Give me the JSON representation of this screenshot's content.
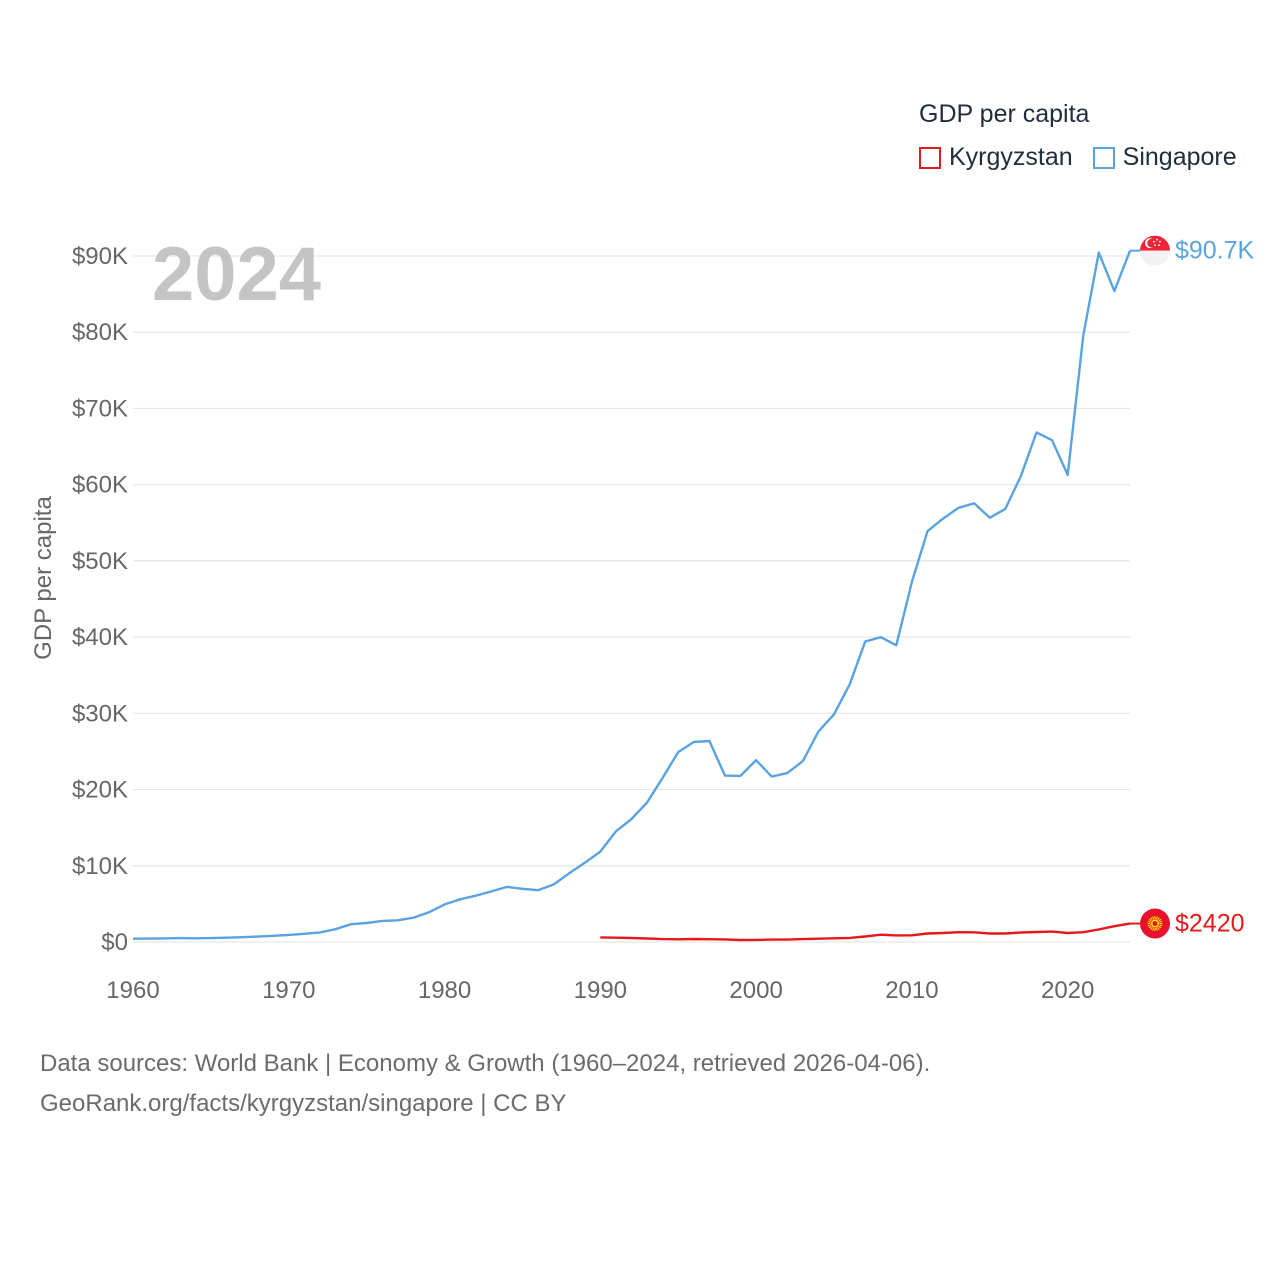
{
  "legend": {
    "title": "GDP per capita",
    "items": [
      {
        "label": "Kyrgyzstan",
        "color": "#e31a1c"
      },
      {
        "label": "Singapore",
        "color": "#5ba3e0"
      }
    ]
  },
  "source": {
    "line1": "Data sources: World Bank | Economy & Growth (1960–2024, retrieved 2026-04-06).",
    "line2": "GeoRank.org/facts/kyrgyzstan/singapore | CC BY"
  },
  "chart_data": {
    "type": "line",
    "year_label": "2024",
    "ylabel": "GDP per capita",
    "xlim": [
      1960,
      2024
    ],
    "ylim": [
      0,
      90000
    ],
    "yticks": [
      0,
      10000,
      20000,
      30000,
      40000,
      50000,
      60000,
      70000,
      80000,
      90000
    ],
    "ytick_labels": [
      "$0",
      "$10K",
      "$20K",
      "$30K",
      "$40K",
      "$50K",
      "$60K",
      "$70K",
      "$80K",
      "$90K"
    ],
    "xticks": [
      1960,
      1970,
      1980,
      1990,
      2000,
      2010,
      2020
    ],
    "xtick_labels": [
      "1960",
      "1970",
      "1980",
      "1990",
      "2000",
      "2010",
      "2020"
    ],
    "series": [
      {
        "name": "Singapore",
        "color": "#5ba3e0",
        "end_label": "$90.7K",
        "flag": "singapore-flag",
        "x": [
          1960,
          1961,
          1962,
          1963,
          1964,
          1965,
          1966,
          1967,
          1968,
          1969,
          1970,
          1971,
          1972,
          1973,
          1974,
          1975,
          1976,
          1977,
          1978,
          1979,
          1980,
          1981,
          1982,
          1983,
          1984,
          1985,
          1986,
          1987,
          1988,
          1989,
          1990,
          1991,
          1992,
          1993,
          1994,
          1995,
          1996,
          1997,
          1998,
          1999,
          2000,
          2001,
          2002,
          2003,
          2004,
          2005,
          2006,
          2007,
          2008,
          2009,
          2010,
          2011,
          2012,
          2013,
          2014,
          2015,
          2016,
          2017,
          2018,
          2019,
          2020,
          2021,
          2022,
          2023,
          2024
        ],
        "values": [
          428,
          449,
          472,
          511,
          485,
          517,
          567,
          626,
          708,
          812,
          925,
          1071,
          1264,
          1685,
          2341,
          2490,
          2769,
          2846,
          3194,
          3900,
          4928,
          5596,
          6078,
          6633,
          7235,
          6986,
          6800,
          7539,
          9018,
          10394,
          11864,
          14505,
          16136,
          18302,
          21553,
          24915,
          26233,
          26375,
          21829,
          21796,
          23852,
          21700,
          22160,
          23730,
          27610,
          29870,
          33770,
          39430,
          39990,
          38930,
          47240,
          53890,
          55550,
          56970,
          57560,
          55650,
          56830,
          61180,
          66840,
          65830,
          61270,
          79600,
          90440,
          85400,
          90700
        ]
      },
      {
        "name": "Kyrgyzstan",
        "color": "#e31a1c",
        "end_label": "$2420",
        "flag": "kyrgyzstan-flag",
        "x": [
          1990,
          1991,
          1992,
          1993,
          1994,
          1995,
          1996,
          1997,
          1998,
          1999,
          2000,
          2001,
          2002,
          2003,
          2004,
          2005,
          2006,
          2007,
          2008,
          2009,
          2010,
          2011,
          2012,
          2013,
          2014,
          2015,
          2016,
          2017,
          2018,
          2019,
          2020,
          2021,
          2022,
          2023,
          2024
        ],
        "values": [
          610,
          570,
          520,
          460,
          380,
          360,
          400,
          370,
          340,
          260,
          280,
          310,
          320,
          380,
          430,
          480,
          540,
          720,
          960,
          870,
          880,
          1120,
          1180,
          1280,
          1270,
          1120,
          1120,
          1240,
          1310,
          1370,
          1180,
          1280,
          1650,
          2070,
          2420
        ]
      }
    ]
  }
}
